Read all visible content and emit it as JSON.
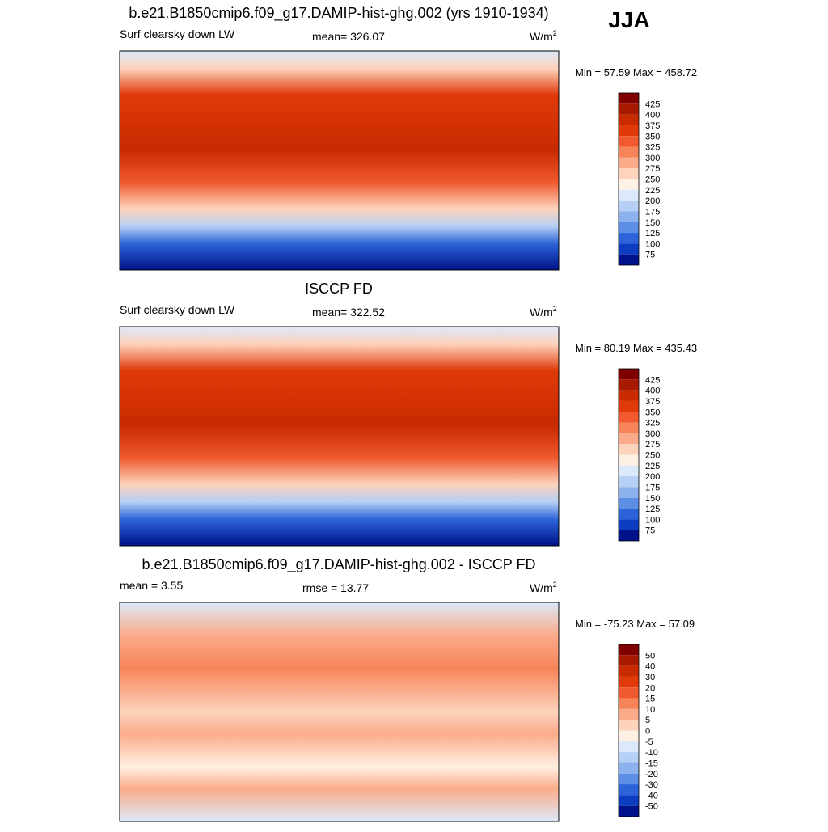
{
  "season": "JJA",
  "panels": [
    {
      "title": "b.e21.B1850cmip6.f09_g17.DAMIP-hist-ghg.002 (yrs 1910-1934)",
      "left": "Surf clearsky down LW",
      "center": "mean= 326.07",
      "units": "W/m",
      "units_sup": "2",
      "minmax": "Min =  57.59 Max = 458.72",
      "levels": [
        425,
        400,
        375,
        350,
        325,
        300,
        275,
        250,
        225,
        200,
        175,
        150,
        125,
        100,
        75
      ],
      "colors": [
        "#7f0000",
        "#a81a00",
        "#c92a00",
        "#e03a0a",
        "#f05a2e",
        "#f78458",
        "#fbab8a",
        "#fdd3bc",
        "#fff0e4",
        "#dce9fa",
        "#b6d0f5",
        "#8cb2ee",
        "#5c8ee6",
        "#2d63d8",
        "#0c3cc0",
        "#00128a"
      ]
    },
    {
      "title": "ISCCP FD",
      "left": "Surf clearsky down LW",
      "center": "mean= 322.52",
      "units": "W/m",
      "units_sup": "2",
      "minmax": "Min =  80.19 Max = 435.43",
      "levels": [
        425,
        400,
        375,
        350,
        325,
        300,
        275,
        250,
        225,
        200,
        175,
        150,
        125,
        100,
        75
      ],
      "colors": [
        "#7f0000",
        "#a81a00",
        "#c92a00",
        "#e03a0a",
        "#f05a2e",
        "#f78458",
        "#fbab8a",
        "#fdd3bc",
        "#fff0e4",
        "#dce9fa",
        "#b6d0f5",
        "#8cb2ee",
        "#5c8ee6",
        "#2d63d8",
        "#0c3cc0",
        "#00128a"
      ]
    },
    {
      "title": "b.e21.B1850cmip6.f09_g17.DAMIP-hist-ghg.002 - ISCCP FD",
      "left": "mean =   3.55",
      "center": "rmse =  13.77",
      "units": "W/m",
      "units_sup": "2",
      "minmax": "Min = -75.23 Max =  57.09",
      "levels": [
        50,
        40,
        30,
        20,
        15,
        10,
        5,
        0,
        -5,
        -10,
        -15,
        -20,
        -30,
        -40,
        -50
      ],
      "colors": [
        "#7f0000",
        "#a81a00",
        "#c92a00",
        "#e03a0a",
        "#f05a2e",
        "#f78458",
        "#fbab8a",
        "#fdd3bc",
        "#fff0e4",
        "#dce9fa",
        "#b6d0f5",
        "#8cb2ee",
        "#5c8ee6",
        "#2d63d8",
        "#0c3cc0",
        "#00128a"
      ]
    }
  ]
}
